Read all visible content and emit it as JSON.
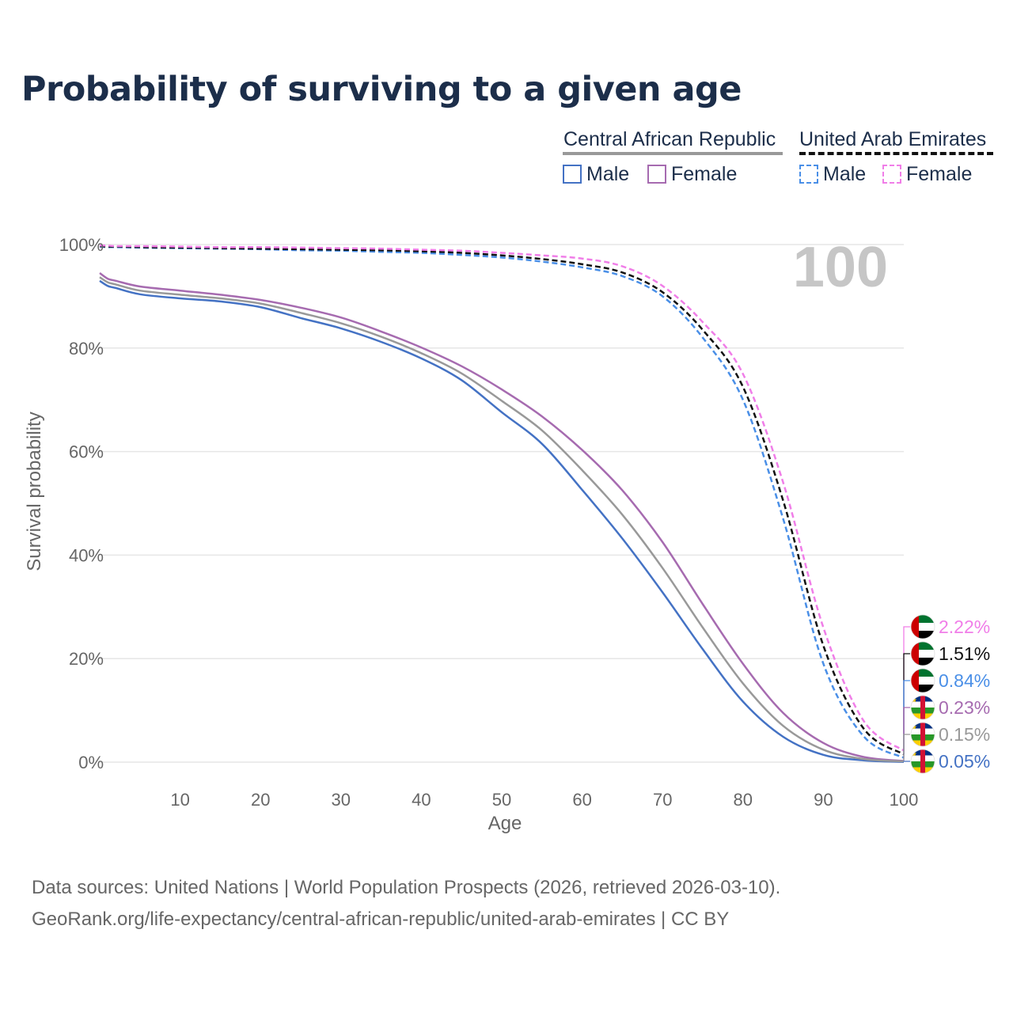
{
  "title": "Probability of surviving to a given age",
  "legend": {
    "groups": [
      {
        "country": "Central African Republic",
        "line_color": "#999999",
        "line_style": "solid",
        "items": [
          {
            "label": "Male",
            "color": "#4472c4",
            "style": "solid"
          },
          {
            "label": "Female",
            "color": "#a66bb0",
            "style": "solid"
          }
        ]
      },
      {
        "country": "United Arab Emirates",
        "line_color": "#111111",
        "line_style": "dashed",
        "items": [
          {
            "label": "Male",
            "color": "#4a8fe7",
            "style": "dashed"
          },
          {
            "label": "Female",
            "color": "#f07ee8",
            "style": "dashed"
          }
        ]
      }
    ]
  },
  "current_age": "100",
  "chart_data": {
    "type": "line",
    "title": "Probability of surviving to a given age",
    "xlabel": "Age",
    "ylabel": "Survival probability",
    "xlim": [
      0,
      100
    ],
    "ylim": [
      0,
      100
    ],
    "x_ticks": [
      10,
      20,
      30,
      40,
      50,
      60,
      70,
      80,
      90,
      100
    ],
    "y_ticks": [
      0,
      20,
      40,
      60,
      80,
      100
    ],
    "y_tick_labels": [
      "0%",
      "20%",
      "40%",
      "60%",
      "80%",
      "100%"
    ],
    "grid": true,
    "x": [
      0,
      1,
      2,
      5,
      10,
      15,
      20,
      25,
      30,
      35,
      40,
      45,
      50,
      55,
      60,
      65,
      70,
      75,
      80,
      85,
      90,
      95,
      100
    ],
    "series": [
      {
        "name": "Central African Republic - Male",
        "color": "#4472c4",
        "style": "solid",
        "values": [
          93.0,
          92.0,
          91.6,
          90.4,
          89.6,
          89.0,
          87.9,
          85.8,
          83.8,
          81.2,
          78.0,
          73.8,
          67.6,
          61.5,
          52.6,
          43.2,
          32.8,
          21.8,
          11.7,
          4.9,
          1.4,
          0.35,
          0.05
        ]
      },
      {
        "name": "Central African Republic - Female",
        "color": "#a66bb0",
        "style": "solid",
        "values": [
          94.5,
          93.4,
          93.0,
          91.9,
          91.1,
          90.3,
          89.3,
          87.8,
          85.9,
          83.2,
          80.1,
          76.5,
          72.0,
          66.8,
          60.3,
          52.5,
          42.5,
          30.5,
          19.0,
          9.5,
          3.7,
          1.0,
          0.23
        ]
      },
      {
        "name": "Central African Republic (both sexes)",
        "color": "#999999",
        "style": "solid",
        "values": [
          93.7,
          92.7,
          92.3,
          91.1,
          90.3,
          89.6,
          88.6,
          86.8,
          84.8,
          82.2,
          79.0,
          75.1,
          69.8,
          64.1,
          56.4,
          47.8,
          37.5,
          26.0,
          15.2,
          7.0,
          2.4,
          0.6,
          0.15
        ]
      },
      {
        "name": "United Arab Emirates - Male",
        "color": "#4a8fe7",
        "style": "dashed",
        "values": [
          99.6,
          99.5,
          99.5,
          99.4,
          99.3,
          99.2,
          99.1,
          98.9,
          98.8,
          98.6,
          98.4,
          98.0,
          97.5,
          96.7,
          95.6,
          93.9,
          90.0,
          82.0,
          70.0,
          47.0,
          19.0,
          5.0,
          0.84
        ]
      },
      {
        "name": "United Arab Emirates (both sexes)",
        "color": "#111111",
        "style": "dashed",
        "values": [
          99.7,
          99.6,
          99.6,
          99.5,
          99.4,
          99.3,
          99.2,
          99.1,
          99.0,
          98.9,
          98.7,
          98.4,
          97.9,
          97.2,
          96.2,
          94.6,
          90.8,
          83.5,
          72.5,
          50.5,
          22.5,
          6.5,
          1.51
        ]
      },
      {
        "name": "United Arab Emirates - Female",
        "color": "#f07ee8",
        "style": "dashed",
        "values": [
          99.8,
          99.8,
          99.7,
          99.7,
          99.6,
          99.5,
          99.5,
          99.4,
          99.3,
          99.2,
          99.0,
          98.8,
          98.4,
          97.9,
          97.3,
          95.8,
          92.0,
          85.0,
          75.0,
          54.0,
          26.0,
          8.0,
          2.22
        ]
      }
    ],
    "end_labels": [
      {
        "text": "2.22%",
        "color": "#f07ee8",
        "flag": "uae"
      },
      {
        "text": "1.51%",
        "color": "#111111",
        "flag": "uae"
      },
      {
        "text": "0.84%",
        "color": "#4a8fe7",
        "flag": "uae"
      },
      {
        "text": "0.23%",
        "color": "#a66bb0",
        "flag": "car"
      },
      {
        "text": "0.15%",
        "color": "#999999",
        "flag": "car"
      },
      {
        "text": "0.05%",
        "color": "#4472c4",
        "flag": "car"
      }
    ]
  },
  "sources": {
    "line1": "Data sources: United Nations | World Population Prospects (2026, retrieved 2026-03-10).",
    "line2": "GeoRank.org/life-expectancy/central-african-republic/united-arab-emirates | CC BY"
  }
}
